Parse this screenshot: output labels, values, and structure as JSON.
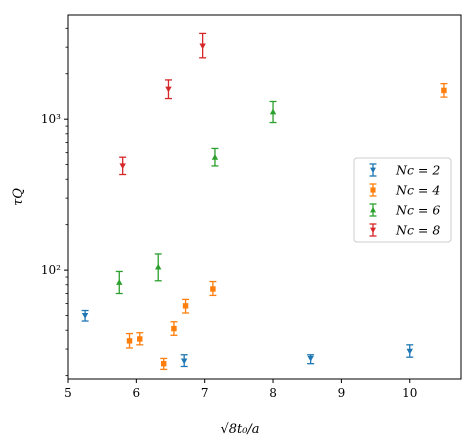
{
  "chart_data": {
    "type": "scatter",
    "title": "",
    "xlabel": "√8t₀/a",
    "ylabel": "τQ",
    "xlim": [
      5,
      10.75
    ],
    "ylim": [
      19,
      4900
    ],
    "yscale": "log",
    "grid": false,
    "legend_position": "right",
    "x_ticks": [
      5,
      6,
      7,
      8,
      9,
      10
    ],
    "x_tick_labels": [
      "5",
      "6",
      "7",
      "8",
      "9",
      "10"
    ],
    "y_ticks": [
      100,
      1000
    ],
    "y_tick_labels": [
      "10²",
      "10³"
    ],
    "series": [
      {
        "name": "Nc = 2",
        "color": "#1f77b4",
        "marker": "tri-down",
        "points": [
          {
            "x": 5.25,
            "y": 50,
            "lo": 46,
            "hi": 54
          },
          {
            "x": 6.7,
            "y": 25,
            "lo": 23,
            "hi": 27.5
          },
          {
            "x": 8.55,
            "y": 26,
            "lo": 24,
            "hi": 27.5
          },
          {
            "x": 10.0,
            "y": 29,
            "lo": 26.5,
            "hi": 32
          }
        ]
      },
      {
        "name": "Nc = 4",
        "color": "#ff7f0e",
        "marker": "square",
        "points": [
          {
            "x": 5.9,
            "y": 34,
            "lo": 30.5,
            "hi": 38
          },
          {
            "x": 6.05,
            "y": 35,
            "lo": 32,
            "hi": 38.5
          },
          {
            "x": 6.4,
            "y": 24,
            "lo": 22,
            "hi": 26
          },
          {
            "x": 6.55,
            "y": 41,
            "lo": 37,
            "hi": 45.5
          },
          {
            "x": 6.72,
            "y": 58,
            "lo": 52,
            "hi": 64
          },
          {
            "x": 7.12,
            "y": 75,
            "lo": 68,
            "hi": 84
          },
          {
            "x": 10.5,
            "y": 1550,
            "lo": 1400,
            "hi": 1720
          }
        ]
      },
      {
        "name": "Nc = 6",
        "color": "#2ca02c",
        "marker": "tri-up",
        "points": [
          {
            "x": 5.75,
            "y": 83,
            "lo": 70,
            "hi": 98
          },
          {
            "x": 6.32,
            "y": 105,
            "lo": 85,
            "hi": 128
          },
          {
            "x": 7.15,
            "y": 560,
            "lo": 490,
            "hi": 640
          },
          {
            "x": 8.0,
            "y": 1120,
            "lo": 950,
            "hi": 1310
          }
        ]
      },
      {
        "name": "Nc = 8",
        "color": "#d62728",
        "marker": "tri-down",
        "points": [
          {
            "x": 5.8,
            "y": 490,
            "lo": 430,
            "hi": 560
          },
          {
            "x": 6.47,
            "y": 1580,
            "lo": 1370,
            "hi": 1820
          },
          {
            "x": 6.97,
            "y": 3050,
            "lo": 2550,
            "hi": 3700
          }
        ]
      }
    ]
  }
}
